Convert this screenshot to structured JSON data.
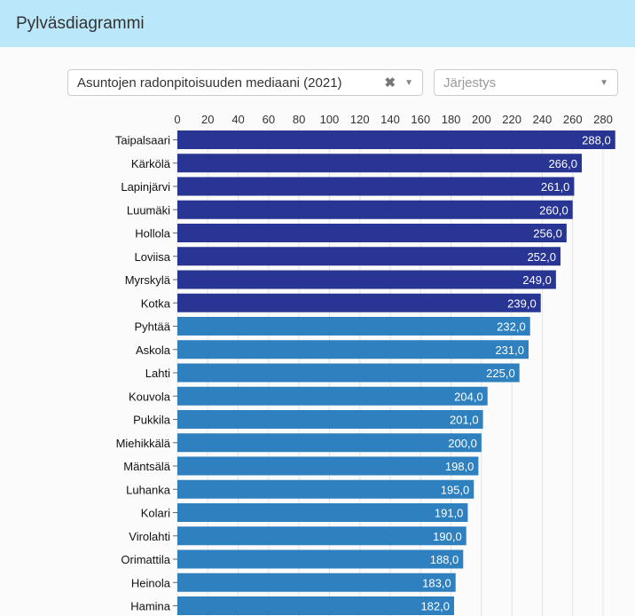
{
  "header": {
    "title": "Pylväsdiagrammi"
  },
  "controls": {
    "variable_select": {
      "value": "Asuntojen radonpitoisuuden mediaani (2021)",
      "clear_icon": "close-icon",
      "caret_icon": "chevron-down-icon"
    },
    "order_select": {
      "placeholder": "Järjestys",
      "caret_icon": "chevron-down-icon"
    }
  },
  "chart_data": {
    "type": "bar",
    "orientation": "horizontal",
    "title": "Asuntojen radonpitoisuuden mediaani (2021)",
    "xlim": [
      0,
      288
    ],
    "ticks": [
      0,
      20,
      40,
      60,
      80,
      100,
      120,
      140,
      160,
      180,
      200,
      220,
      240,
      260,
      280
    ],
    "tick_labels": [
      "0",
      "20",
      "40",
      "60",
      "80",
      "100",
      "120",
      "140",
      "160",
      "180",
      "200",
      "220",
      "240",
      "260",
      "280"
    ],
    "categories": [
      "Taipalsaari",
      "Kärkölä",
      "Lapinjärvi",
      "Luumäki",
      "Hollola",
      "Loviisa",
      "Myrskylä",
      "Kotka",
      "Pyhtää",
      "Askola",
      "Lahti",
      "Kouvola",
      "Pukkila",
      "Miehikkälä",
      "Mäntsälä",
      "Luhanka",
      "Kolari",
      "Virolahti",
      "Orimattila",
      "Heinola",
      "Hamina"
    ],
    "values": [
      288,
      266,
      261,
      260,
      256,
      252,
      249,
      239,
      232,
      231,
      225,
      204,
      201,
      200,
      198,
      195,
      191,
      190,
      188,
      183,
      182
    ],
    "value_labels": [
      "288,0",
      "266,0",
      "261,0",
      "260,0",
      "256,0",
      "252,0",
      "249,0",
      "239,0",
      "232,0",
      "231,0",
      "225,0",
      "204,0",
      "201,0",
      "200,0",
      "198,0",
      "195,0",
      "191,0",
      "190,0",
      "188,0",
      "183,0",
      "182,0"
    ],
    "highlight_count": 8,
    "colors": {
      "highlight": "#283593",
      "normal": "#2e80bf"
    },
    "grid": true
  }
}
